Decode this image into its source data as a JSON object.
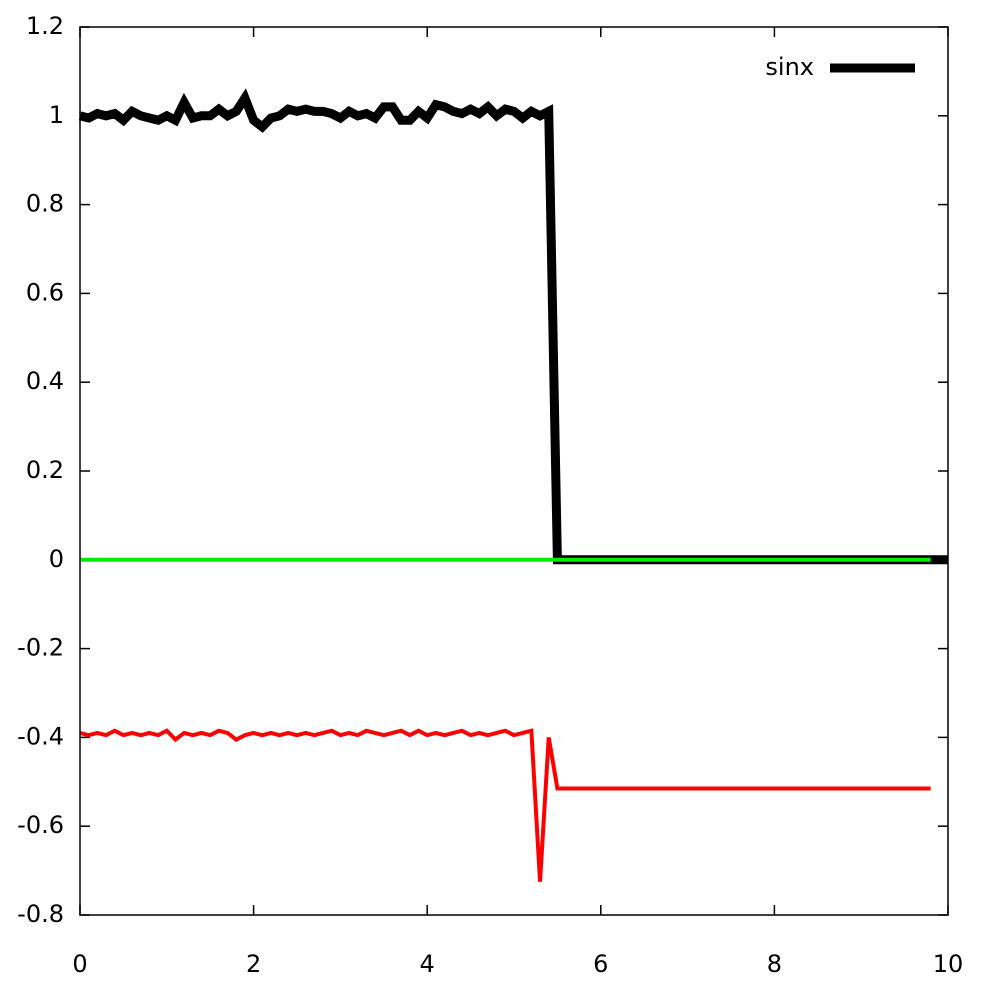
{
  "chart_data": {
    "type": "line",
    "x": [
      0,
      0.1,
      0.2,
      0.3,
      0.4,
      0.5,
      0.6,
      0.7,
      0.8,
      0.9,
      1,
      1.1,
      1.2,
      1.3,
      1.4,
      1.5,
      1.6,
      1.7,
      1.8,
      1.9,
      2,
      2.1,
      2.2,
      2.3,
      2.4,
      2.5,
      2.6,
      2.7,
      2.8,
      2.9,
      3,
      3.1,
      3.2,
      3.3,
      3.4,
      3.5,
      3.6,
      3.7,
      3.8,
      3.9,
      4,
      4.1,
      4.2,
      4.3,
      4.4,
      4.5,
      4.6,
      4.7,
      4.8,
      4.9,
      5,
      5.1,
      5.2,
      5.3,
      5.4,
      5.5,
      9.8,
      10
    ],
    "series": [
      {
        "name": "sinx",
        "color": "#000000",
        "width": 9,
        "values": [
          1.0,
          0.995,
          1.005,
          1.0,
          1.005,
          0.99,
          1.01,
          1.0,
          0.995,
          0.99,
          1.0,
          0.99,
          1.03,
          0.995,
          1.0,
          1.0,
          1.015,
          1.0,
          1.01,
          1.04,
          0.99,
          0.975,
          0.995,
          1.0,
          1.015,
          1.01,
          1.015,
          1.01,
          1.01,
          1.005,
          0.995,
          1.01,
          1.0,
          1.005,
          0.995,
          1.02,
          1.02,
          0.99,
          0.99,
          1.01,
          0.995,
          1.025,
          1.02,
          1.01,
          1.005,
          1.015,
          1.005,
          1.02,
          1.0,
          1.015,
          1.01,
          0.995,
          1.01,
          1.0,
          1.01,
          0,
          0,
          0
        ]
      },
      {
        "color": "#00ee00",
        "width": 4,
        "values": [
          0,
          0,
          0,
          0,
          0,
          0,
          0,
          0,
          0,
          0,
          0,
          0,
          0,
          0,
          0,
          0,
          0,
          0,
          0,
          0,
          0,
          0,
          0,
          0,
          0,
          0,
          0,
          0,
          0,
          0,
          0,
          0,
          0,
          0,
          0,
          0,
          0,
          0,
          0,
          0,
          0,
          0,
          0,
          0,
          0,
          0,
          0,
          0,
          0,
          0,
          0,
          0,
          0,
          0,
          0,
          0,
          0,
          null
        ]
      },
      {
        "color": "#ff0000",
        "width": 4,
        "values": [
          -0.39,
          -0.395,
          -0.39,
          -0.395,
          -0.385,
          -0.395,
          -0.39,
          -0.395,
          -0.39,
          -0.395,
          -0.385,
          -0.405,
          -0.39,
          -0.395,
          -0.39,
          -0.395,
          -0.385,
          -0.39,
          -0.405,
          -0.395,
          -0.39,
          -0.395,
          -0.39,
          -0.395,
          -0.39,
          -0.395,
          -0.39,
          -0.395,
          -0.39,
          -0.385,
          -0.395,
          -0.39,
          -0.395,
          -0.385,
          -0.39,
          -0.395,
          -0.39,
          -0.385,
          -0.395,
          -0.385,
          -0.395,
          -0.39,
          -0.395,
          -0.39,
          -0.385,
          -0.395,
          -0.39,
          -0.395,
          -0.39,
          -0.385,
          -0.395,
          -0.39,
          -0.385,
          -0.725,
          -0.4,
          -0.515,
          -0.515,
          null
        ]
      }
    ],
    "xlim": [
      0,
      10
    ],
    "xticks": [
      0,
      2,
      4,
      6,
      8,
      10
    ],
    "ylim": [
      -0.8,
      1.2
    ],
    "yticks": [
      -0.8,
      -0.6,
      -0.4,
      -0.2,
      0,
      0.2,
      0.4,
      0.6,
      0.8,
      1,
      1.2
    ],
    "grid": false,
    "legend": "top-right"
  }
}
